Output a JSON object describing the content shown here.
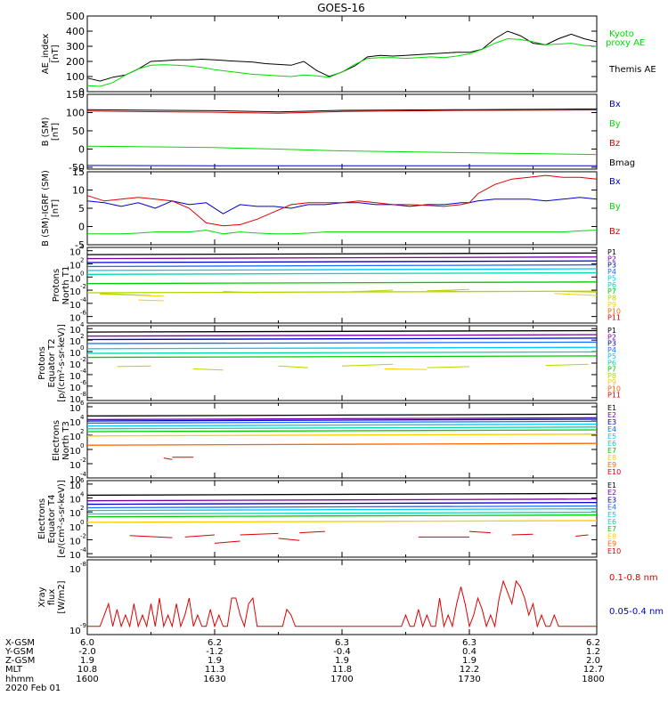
{
  "title": "GOES-16",
  "colors": {
    "black": "#000000",
    "green": "#00dd00",
    "blue": "#0000cc",
    "red": "#dd0000",
    "p": [
      "#000000",
      "#7a00a0",
      "#0000cc",
      "#1e6cff",
      "#00c8ff",
      "#00d8b0",
      "#00cc00",
      "#b0d800",
      "#ffcc00",
      "#ff6600",
      "#dd0000"
    ],
    "e": [
      "#000000",
      "#7a00a0",
      "#0000cc",
      "#1e6cff",
      "#00c8ff",
      "#00d8b0",
      "#00cc00",
      "#ffcc00",
      "#ff6600",
      "#dd0000"
    ]
  },
  "chart_data": [
    {
      "type": "line",
      "ylabel": "AE_index [nT]",
      "ylim": [
        0,
        500
      ],
      "yticks": [
        "500",
        "400",
        "300",
        "200",
        "100",
        "0"
      ],
      "legend": [
        {
          "text": "Kyoto",
          "color": "green"
        },
        {
          "text": "proxy AE",
          "color": "green"
        },
        {
          "text": "Themis AE",
          "color": "black"
        }
      ],
      "x": [
        1600,
        1603,
        1606,
        1609,
        1612,
        1615,
        1618,
        1621,
        1624,
        1627,
        1630,
        1633,
        1636,
        1639,
        1642,
        1645,
        1648,
        1651,
        1654,
        1657,
        1700,
        1703,
        1706,
        1709,
        1712,
        1715,
        1718,
        1721,
        1724,
        1727,
        1730,
        1733,
        1736,
        1739,
        1742,
        1745,
        1748,
        1751,
        1754,
        1757,
        1800
      ],
      "series": [
        {
          "name": "Themis AE",
          "color": "black",
          "values": [
            90,
            70,
            95,
            110,
            150,
            200,
            205,
            210,
            210,
            215,
            210,
            205,
            200,
            195,
            185,
            180,
            175,
            200,
            140,
            100,
            130,
            170,
            230,
            240,
            235,
            240,
            245,
            250,
            255,
            260,
            260,
            280,
            350,
            400,
            370,
            320,
            310,
            350,
            380,
            350,
            330
          ]
        },
        {
          "name": "Kyoto proxy AE",
          "color": "green",
          "values": [
            40,
            35,
            60,
            110,
            150,
            175,
            178,
            175,
            170,
            160,
            145,
            135,
            125,
            115,
            110,
            105,
            100,
            110,
            105,
            95,
            130,
            180,
            220,
            225,
            225,
            220,
            225,
            230,
            225,
            235,
            250,
            280,
            320,
            350,
            345,
            330,
            310,
            315,
            320,
            305,
            300
          ]
        }
      ]
    },
    {
      "type": "line",
      "ylabel": "B (SM) [nT]",
      "ylim": [
        -55,
        150
      ],
      "yticks": [
        "150",
        "100",
        "50",
        "0",
        "-50"
      ],
      "legend": [
        {
          "text": "Bx",
          "color": "blue"
        },
        {
          "text": "By",
          "color": "green"
        },
        {
          "text": "Bz",
          "color": "red"
        },
        {
          "text": "Bmag",
          "color": "black"
        }
      ],
      "x": [
        1600,
        1630,
        1645,
        1700,
        1730,
        1800
      ],
      "series": [
        {
          "name": "Bmag",
          "color": "black",
          "values": [
            108,
            105,
            102,
            106,
            108,
            110
          ]
        },
        {
          "name": "Bz",
          "color": "red",
          "values": [
            104,
            101,
            98,
            103,
            106,
            107
          ]
        },
        {
          "name": "By",
          "color": "green",
          "values": [
            8,
            4,
            0,
            -5,
            -10,
            -15
          ]
        },
        {
          "name": "Bx",
          "color": "blue",
          "values": [
            -45,
            -46,
            -46,
            -46,
            -46,
            -46
          ]
        }
      ]
    },
    {
      "type": "line",
      "ylabel": "B (SM)-IGRF (SM) [nT]",
      "ylim": [
        -5,
        15
      ],
      "yticks": [
        "15",
        "10",
        "5",
        "0",
        "-5"
      ],
      "legend": [
        {
          "text": "Bx",
          "color": "blue"
        },
        {
          "text": "By",
          "color": "green"
        },
        {
          "text": "Bz",
          "color": "red"
        }
      ],
      "x": [
        1600,
        1604,
        1608,
        1612,
        1616,
        1620,
        1624,
        1628,
        1632,
        1636,
        1640,
        1644,
        1648,
        1652,
        1656,
        1700,
        1704,
        1708,
        1712,
        1716,
        1720,
        1724,
        1728,
        1730,
        1732,
        1736,
        1740,
        1744,
        1748,
        1752,
        1756,
        1800
      ],
      "series": [
        {
          "name": "Bx",
          "color": "blue",
          "values": [
            7,
            6.5,
            5.5,
            6.5,
            5,
            7,
            6,
            6.5,
            3.5,
            6,
            5.5,
            5.5,
            5,
            6,
            6,
            6.5,
            6.5,
            6,
            6,
            5.5,
            6,
            6,
            6.5,
            6.5,
            7,
            7.5,
            7.5,
            7.5,
            7,
            7.5,
            8,
            7.5
          ]
        },
        {
          "name": "Bz",
          "color": "red",
          "values": [
            8.5,
            7,
            7.5,
            8,
            7.5,
            7,
            5,
            1,
            0.2,
            0.5,
            2,
            4,
            6,
            6.5,
            6.5,
            6.5,
            7,
            6.5,
            6,
            6,
            5.8,
            5.5,
            6,
            6.5,
            9,
            11.5,
            13,
            13.5,
            14,
            13.5,
            13.5,
            13
          ]
        },
        {
          "name": "By",
          "color": "green",
          "values": [
            -2,
            -2,
            -2,
            -1.8,
            -1.5,
            -1.5,
            -1.5,
            -1,
            -2,
            -1.5,
            -1.8,
            -2,
            -2,
            -1.8,
            -1.5,
            -1.5,
            -1.5,
            -1.5,
            -1.5,
            -1.5,
            -1.5,
            -1.5,
            -1.5,
            -1.5,
            -1.5,
            -1.5,
            -1.5,
            -1.5,
            -1.5,
            -1.5,
            -1.2,
            -1
          ]
        }
      ]
    },
    {
      "type": "line",
      "ylabel": "Protons North T1",
      "ylog": true,
      "yexp": [
        4,
        2,
        0,
        -2,
        -4,
        -6
      ],
      "ylim_exp": [
        -7,
        4.5
      ],
      "legend": [
        "P1",
        "P2",
        "P3",
        "P4",
        "P5",
        "P6",
        "P7",
        "P8",
        "P9",
        "P10",
        "P11"
      ],
      "levels_exp": [
        3.4,
        2.8,
        2.2,
        1.6,
        1.0,
        0.4,
        -1.0,
        -2.4
      ],
      "level_colors": [
        0,
        1,
        2,
        3,
        4,
        5,
        6,
        7
      ],
      "sparse": [
        {
          "color": 8,
          "segments": [
            [
              1603,
              1618,
              -2.6
            ],
            [
              1720,
              1727,
              -2.2
            ],
            [
              1750,
              1760,
              -2.5
            ],
            [
              1612,
              1618,
              -3.5
            ]
          ]
        },
        {
          "color": 7,
          "segments": [
            [
              1603,
              1615,
              -2.5
            ],
            [
              1632,
              1640,
              -2.2
            ],
            [
              1700,
              1712,
              -2.3
            ],
            [
              1720,
              1730,
              -2.1
            ],
            [
              1752,
              1800,
              -2.2
            ]
          ]
        }
      ]
    },
    {
      "type": "line",
      "ylabel": "Protons Equator T2 [p/(cm²-s-sr-keV)]",
      "ylog": true,
      "yexp": [
        4,
        2,
        0,
        -2,
        -4,
        -6,
        -8
      ],
      "ylim_exp": [
        -8.5,
        4.5
      ],
      "legend": [
        "P1",
        "P2",
        "P3",
        "P4",
        "P5",
        "P6",
        "P7",
        "P8",
        "P9",
        "P10",
        "P11"
      ],
      "levels_exp": [
        3.4,
        2.7,
        2.1,
        1.4,
        0.5,
        -0.3,
        -1.0
      ],
      "level_colors": [
        0,
        1,
        2,
        3,
        4,
        5,
        6
      ],
      "sparse": [
        {
          "color": 7,
          "segments": [
            [
              1607,
              1615,
              -2.6
            ],
            [
              1625,
              1632,
              -3.0
            ],
            [
              1645,
              1652,
              -2.5
            ],
            [
              1700,
              1712,
              -2.5
            ],
            [
              1720,
              1730,
              -2.8
            ],
            [
              1748,
              1758,
              -2.4
            ]
          ]
        },
        {
          "color": 8,
          "segments": [
            [
              1710,
              1720,
              -3.0
            ]
          ]
        }
      ]
    },
    {
      "type": "line",
      "ylabel": "Electrons North T3",
      "ylog": true,
      "yexp": [
        6,
        4,
        2,
        0,
        -2,
        -4
      ],
      "ylim_exp": [
        -4,
        6.5
      ],
      "legend": [
        "E1",
        "E2",
        "E3",
        "E4",
        "E5",
        "E6",
        "E7",
        "E8",
        "E9",
        "E10"
      ],
      "levels_exp": [
        4.7,
        4.2,
        4.0,
        3.7,
        3.3,
        2.9,
        2.5,
        1.9,
        0.6
      ],
      "level_colors": [
        0,
        1,
        2,
        3,
        4,
        5,
        6,
        7,
        8
      ],
      "sparse": [
        {
          "color": 9,
          "segments": [
            [
              1620,
              1625,
              -1.1
            ],
            [
              1618,
              1620,
              -1.2
            ]
          ]
        }
      ]
    },
    {
      "type": "line",
      "ylabel": "Electrons Equator T4 [e/(cm²-s-sr-keV)]",
      "ylog": true,
      "yexp": [
        6,
        4,
        2,
        0,
        -2,
        -4
      ],
      "ylim_exp": [
        -4.5,
        6.5
      ],
      "legend": [
        "E1",
        "E2",
        "E3",
        "E4",
        "E5",
        "E6",
        "E7",
        "E8",
        "E9",
        "E10"
      ],
      "levels_exp": [
        4.4,
        3.6,
        3.1,
        2.6,
        2.2,
        1.7,
        1.3,
        0.5
      ],
      "level_colors": [
        0,
        1,
        2,
        3,
        4,
        5,
        6,
        7
      ],
      "sparse": [
        {
          "color": 9,
          "segments": [
            [
              1610,
              1620,
              -1.4
            ],
            [
              1623,
              1630,
              -1.6
            ],
            [
              1630,
              1636,
              -2.5
            ],
            [
              1636,
              1645,
              -1.3
            ],
            [
              1645,
              1650,
              -1.8
            ],
            [
              1650,
              1656,
              -1.0
            ],
            [
              1718,
              1730,
              -1.6
            ],
            [
              1730,
              1735,
              -0.8
            ],
            [
              1740,
              1745,
              -1.3
            ],
            [
              1755,
              1758,
              -1.5
            ]
          ]
        }
      ]
    },
    {
      "type": "line",
      "ylabel": "Xray flux [W/m2]",
      "ylog": true,
      "yexp": [
        -8,
        -9
      ],
      "legend": [
        {
          "text": "0.1-0.8 nm",
          "color": "red"
        },
        {
          "text": "0.05-0.4 nm",
          "color": "blue"
        }
      ],
      "x": [
        1600,
        1601,
        1602,
        1603,
        1604,
        1605,
        1606,
        1607,
        1608,
        1609,
        1610,
        1611,
        1612,
        1613,
        1614,
        1615,
        1616,
        1617,
        1618,
        1619,
        1620,
        1621,
        1622,
        1623,
        1624,
        1625,
        1626,
        1627,
        1628,
        1629,
        1630,
        1631,
        1632,
        1633,
        1634,
        1635,
        1636,
        1637,
        1638,
        1639,
        1640,
        1641,
        1642,
        1643,
        1644,
        1645,
        1646,
        1647,
        1648,
        1649,
        1650,
        1651,
        1652,
        1653,
        1654,
        1655,
        1656,
        1657,
        1658,
        1659,
        1700,
        1701,
        1702,
        1703,
        1704,
        1705,
        1706,
        1707,
        1708,
        1709,
        1710,
        1711,
        1712,
        1713,
        1714,
        1715,
        1716,
        1717,
        1718,
        1719,
        1720,
        1721,
        1722,
        1723,
        1724,
        1725,
        1726,
        1727,
        1728,
        1729,
        1730,
        1731,
        1732,
        1733,
        1734,
        1735,
        1736,
        1737,
        1738,
        1739,
        1740,
        1741,
        1742,
        1743,
        1744,
        1745,
        1746,
        1747,
        1748,
        1749,
        1750,
        1751,
        1752,
        1753,
        1754,
        1755,
        1756,
        1757,
        1758,
        1759,
        1800
      ],
      "series": [
        {
          "name": "0.1-0.8 nm",
          "color": "red",
          "exp_values": [
            -9,
            -9,
            -9,
            -9,
            -8.8,
            -8.6,
            -9,
            -8.7,
            -9,
            -8.8,
            -9,
            -8.6,
            -9,
            -8.8,
            -9,
            -8.6,
            -9,
            -8.5,
            -9,
            -8.8,
            -9,
            -8.6,
            -9,
            -8.8,
            -8.5,
            -9,
            -8.8,
            -9,
            -9,
            -8.7,
            -9,
            -8.8,
            -9,
            -9,
            -8.5,
            -8.5,
            -8.8,
            -9,
            -8.6,
            -8.5,
            -9,
            -9,
            -9,
            -9,
            -9,
            -9,
            -9,
            -8.7,
            -8.8,
            -9,
            -9,
            -9,
            -9,
            -9,
            -9,
            -9,
            -9,
            -9,
            -9,
            -9,
            -9,
            -9,
            -9,
            -9,
            -9,
            -9,
            -9,
            -9,
            -9,
            -9,
            -9,
            -9,
            -9,
            -9,
            -9,
            -8.8,
            -9,
            -9,
            -8.7,
            -9,
            -8.8,
            -9,
            -9,
            -8.5,
            -9,
            -8.8,
            -9,
            -8.6,
            -8.3,
            -8.6,
            -9,
            -8.8,
            -8.5,
            -8.7,
            -9,
            -8.8,
            -9,
            -8.5,
            -8.2,
            -8.4,
            -8.6,
            -8.2,
            -8.3,
            -8.5,
            -8.8,
            -8.6,
            -9,
            -8.8,
            -9,
            -9,
            -8.8,
            -9,
            -9,
            -9,
            -9,
            -9,
            -9,
            -9,
            -9,
            -9,
            -9
          ]
        }
      ]
    }
  ],
  "xaxis": {
    "ticks": [
      1600,
      1630,
      1700,
      1730,
      1800
    ],
    "rows": [
      {
        "label": "X-GSM",
        "values": [
          "6.0",
          "6.2",
          "6.3",
          "6.3",
          "6.2"
        ]
      },
      {
        "label": "Y-GSM",
        "values": [
          "-2.0",
          "-1.2",
          "-0.4",
          "0.4",
          "1.2"
        ]
      },
      {
        "label": "Z-GSM",
        "values": [
          "1.9",
          "1.9",
          "1.9",
          "1.9",
          "2.0"
        ]
      },
      {
        "label": "MLT",
        "values": [
          "10.8",
          "11.3",
          "11.8",
          "12.2",
          "12.7"
        ]
      },
      {
        "label": "hhmm",
        "values": [
          "1600",
          "1630",
          "1700",
          "1730",
          "1800"
        ]
      }
    ],
    "date": "2020 Feb 01"
  }
}
